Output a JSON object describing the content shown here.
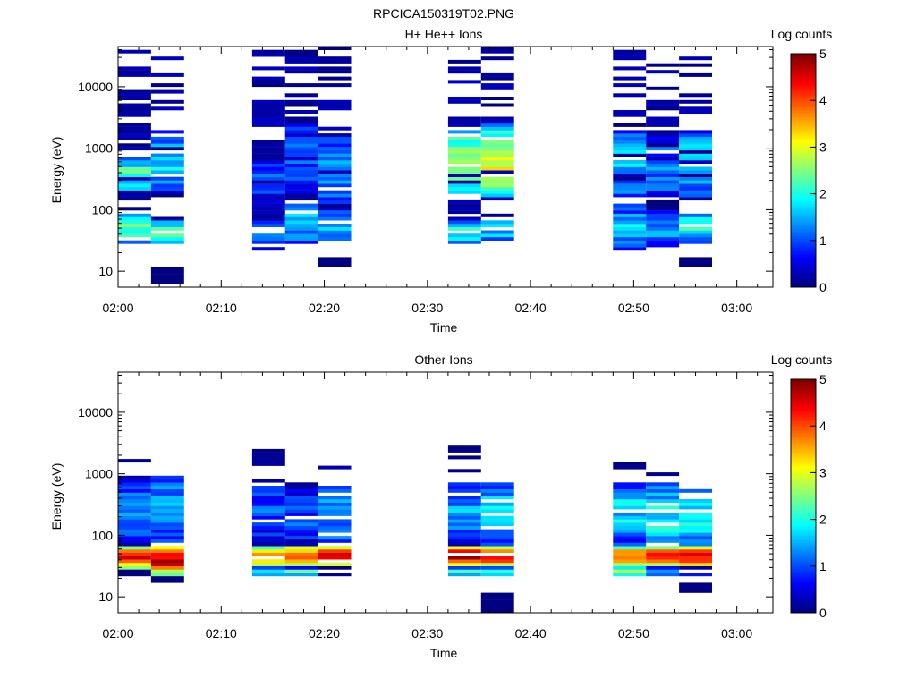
{
  "figure_title": "RPCICA150319T02.PNG",
  "chart_data": [
    {
      "type": "heatmap",
      "title": "H+ He++ Ions",
      "xlabel": "Time",
      "ylabel": "Energy (eV)",
      "x_ticks": [
        "02:00",
        "02:10",
        "02:20",
        "02:30",
        "02:40",
        "02:50",
        "03:00"
      ],
      "x_range_minutes": [
        0,
        63.5
      ],
      "y_scale": "log",
      "y_ticks": [
        "10",
        "100",
        "1000",
        "10000"
      ],
      "ylim": [
        5.5,
        45000
      ],
      "colorbar": {
        "label": "Log counts",
        "range": [
          0,
          5
        ],
        "ticks": [
          "0",
          "1",
          "2",
          "3",
          "4",
          "5"
        ]
      },
      "columns": [
        {
          "t0": 0,
          "t1": 3.2,
          "seed": 11,
          "bands": [
            {
              "lo": 28,
              "hi": 90,
              "v": 2.0
            },
            {
              "lo": 200,
              "hi": 700,
              "v": 1.8
            }
          ],
          "scatter": [
            [
              90,
              40000,
              0.45
            ]
          ]
        },
        {
          "t0": 3.2,
          "t1": 6.4,
          "seed": 23,
          "bands": [
            {
              "lo": 6,
              "hi": 11,
              "v": 0.0
            },
            {
              "lo": 28,
              "hi": 70,
              "v": 1.8
            },
            {
              "lo": 200,
              "hi": 2000,
              "v": 1.4
            }
          ],
          "scatter": [
            [
              70,
              30000,
              0.4
            ]
          ]
        },
        {
          "t0": 13.0,
          "t1": 16.2,
          "seed": 37,
          "bands": [
            {
              "lo": 22,
              "hi": 70,
              "v": 1.2
            },
            {
              "lo": 130,
              "hi": 650,
              "v": 0.9
            }
          ],
          "scatter": [
            [
              70,
              45000,
              0.5
            ]
          ]
        },
        {
          "t0": 16.2,
          "t1": 19.4,
          "seed": 41,
          "bands": [
            {
              "lo": 28,
              "hi": 120,
              "v": 1.3
            },
            {
              "lo": 160,
              "hi": 2500,
              "v": 0.8
            }
          ],
          "scatter": [
            [
              120,
              40000,
              0.45
            ]
          ]
        },
        {
          "t0": 19.4,
          "t1": 22.6,
          "seed": 53,
          "bands": [
            {
              "lo": 11,
              "hi": 16,
              "v": 0.0
            },
            {
              "lo": 30,
              "hi": 100,
              "v": 1.4
            },
            {
              "lo": 130,
              "hi": 1500,
              "v": 1.3
            }
          ],
          "scatter": [
            [
              100,
              45000,
              0.45
            ]
          ]
        },
        {
          "t0": 32.0,
          "t1": 35.2,
          "seed": 67,
          "bands": [
            {
              "lo": 28,
              "hi": 70,
              "v": 1.8
            },
            {
              "lo": 160,
              "hi": 2000,
              "v": 2.4
            }
          ],
          "scatter": [
            [
              70,
              40000,
              0.45
            ]
          ]
        },
        {
          "t0": 35.2,
          "t1": 38.4,
          "seed": 79,
          "bands": [
            {
              "lo": 30,
              "hi": 80,
              "v": 1.4
            },
            {
              "lo": 140,
              "hi": 2500,
              "v": 2.6
            }
          ],
          "scatter": [
            [
              80,
              45000,
              0.5
            ]
          ]
        },
        {
          "t0": 48.0,
          "t1": 51.2,
          "seed": 83,
          "bands": [
            {
              "lo": 22,
              "hi": 120,
              "v": 1.3
            },
            {
              "lo": 150,
              "hi": 2000,
              "v": 1.3
            }
          ],
          "scatter": [
            [
              120,
              40000,
              0.5
            ]
          ]
        },
        {
          "t0": 51.2,
          "t1": 54.4,
          "seed": 97,
          "bands": [
            {
              "lo": 22,
              "hi": 100,
              "v": 1.1
            },
            {
              "lo": 140,
              "hi": 1500,
              "v": 1.0
            }
          ],
          "scatter": [
            [
              100,
              30000,
              0.45
            ]
          ]
        },
        {
          "t0": 54.4,
          "t1": 57.6,
          "seed": 101,
          "bands": [
            {
              "lo": 11,
              "hi": 16,
              "v": 0.0
            },
            {
              "lo": 28,
              "hi": 100,
              "v": 1.6
            },
            {
              "lo": 150,
              "hi": 2000,
              "v": 1.4
            }
          ],
          "scatter": [
            [
              100,
              45000,
              0.45
            ]
          ]
        }
      ]
    },
    {
      "type": "heatmap",
      "title": "Other Ions",
      "xlabel": "Time",
      "ylabel": "Energy (eV)",
      "x_ticks": [
        "02:00",
        "02:10",
        "02:20",
        "02:30",
        "02:40",
        "02:50",
        "03:00"
      ],
      "x_range_minutes": [
        0,
        63.5
      ],
      "y_scale": "log",
      "y_ticks": [
        "10",
        "100",
        "1000",
        "10000"
      ],
      "ylim": [
        5.5,
        45000
      ],
      "colorbar": {
        "label": "Log counts",
        "range": [
          0,
          5
        ],
        "ticks": [
          "0",
          "1",
          "2",
          "3",
          "4",
          "5"
        ]
      },
      "columns": [
        {
          "t0": 0,
          "t1": 3.2,
          "seed": 211,
          "bands": [
            {
              "lo": 22,
              "hi": 27,
              "v": 0.0
            },
            {
              "lo": 27,
              "hi": 70,
              "v": 3.6
            },
            {
              "lo": 70,
              "hi": 900,
              "v": 1.0
            }
          ],
          "scatter": [
            [
              900,
              1800,
              0.5
            ]
          ]
        },
        {
          "t0": 3.2,
          "t1": 6.4,
          "seed": 223,
          "bands": [
            {
              "lo": 16,
              "hi": 22,
              "v": 0.0
            },
            {
              "lo": 22,
              "hi": 70,
              "v": 3.7
            },
            {
              "lo": 70,
              "hi": 1200,
              "v": 1.2
            }
          ],
          "scatter": []
        },
        {
          "t0": 13.0,
          "t1": 16.2,
          "seed": 237,
          "bands": [
            {
              "lo": 22,
              "hi": 30,
              "v": 1.8
            },
            {
              "lo": 30,
              "hi": 70,
              "v": 3.4
            },
            {
              "lo": 70,
              "hi": 800,
              "v": 0.8
            }
          ],
          "scatter": [
            [
              1300,
              2500,
              0.6
            ]
          ]
        },
        {
          "t0": 16.2,
          "t1": 19.4,
          "seed": 241,
          "bands": [
            {
              "lo": 22,
              "hi": 30,
              "v": 1.8
            },
            {
              "lo": 30,
              "hi": 70,
              "v": 3.6
            },
            {
              "lo": 70,
              "hi": 700,
              "v": 0.8
            }
          ],
          "scatter": []
        },
        {
          "t0": 19.4,
          "t1": 22.6,
          "seed": 253,
          "bands": [
            {
              "lo": 22,
              "hi": 30,
              "v": 0.3
            },
            {
              "lo": 30,
              "hi": 70,
              "v": 3.7
            },
            {
              "lo": 70,
              "hi": 650,
              "v": 1.2
            }
          ],
          "scatter": [
            [
              1150,
              1350,
              1.0
            ]
          ]
        },
        {
          "t0": 32.0,
          "t1": 35.2,
          "seed": 267,
          "bands": [
            {
              "lo": 22,
              "hi": 30,
              "v": 1.8
            },
            {
              "lo": 30,
              "hi": 70,
              "v": 3.8
            },
            {
              "lo": 70,
              "hi": 700,
              "v": 1.2
            }
          ],
          "scatter": [
            [
              1000,
              3000,
              0.6
            ]
          ]
        },
        {
          "t0": 35.2,
          "t1": 38.4,
          "seed": 279,
          "bands": [
            {
              "lo": 5.5,
              "hi": 11,
              "v": 0.0
            },
            {
              "lo": 22,
              "hi": 30,
              "v": 1.8
            },
            {
              "lo": 30,
              "hi": 70,
              "v": 3.7
            },
            {
              "lo": 70,
              "hi": 700,
              "v": 1.4
            }
          ],
          "scatter": []
        },
        {
          "t0": 48.0,
          "t1": 51.2,
          "seed": 283,
          "bands": [
            {
              "lo": 22,
              "hi": 30,
              "v": 2.3
            },
            {
              "lo": 30,
              "hi": 70,
              "v": 3.4
            },
            {
              "lo": 70,
              "hi": 700,
              "v": 1.4
            }
          ],
          "scatter": [
            [
              1200,
              1500,
              1.0
            ]
          ]
        },
        {
          "t0": 51.2,
          "t1": 54.4,
          "seed": 297,
          "bands": [
            {
              "lo": 22,
              "hi": 30,
              "v": 1.4
            },
            {
              "lo": 30,
              "hi": 70,
              "v": 3.5
            },
            {
              "lo": 70,
              "hi": 700,
              "v": 1.6
            }
          ],
          "scatter": [
            [
              900,
              1100,
              1.0
            ]
          ]
        },
        {
          "t0": 54.4,
          "t1": 57.6,
          "seed": 301,
          "bands": [
            {
              "lo": 11,
              "hi": 16,
              "v": 0.0
            },
            {
              "lo": 22,
              "hi": 30,
              "v": 0.5
            },
            {
              "lo": 30,
              "hi": 70,
              "v": 3.6
            },
            {
              "lo": 70,
              "hi": 550,
              "v": 1.5
            }
          ],
          "scatter": []
        }
      ]
    }
  ]
}
